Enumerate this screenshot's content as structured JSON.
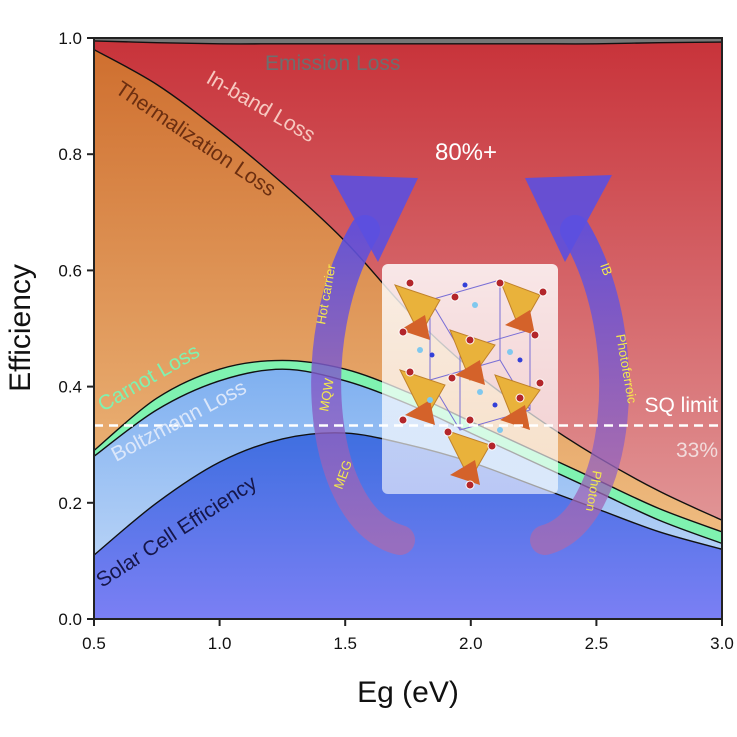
{
  "chart_data": {
    "type": "area",
    "xlabel": "Eg (eV)",
    "ylabel": "Efficiency",
    "xlim": [
      0.5,
      3.0
    ],
    "ylim": [
      0.0,
      1.0
    ],
    "xticks": [
      "0.5",
      "1.0",
      "1.5",
      "2.0",
      "2.5",
      "3.0"
    ],
    "yticks": [
      "0.0",
      "0.2",
      "0.4",
      "0.6",
      "0.8",
      "1.0"
    ],
    "x": [
      0.5,
      0.75,
      1.0,
      1.25,
      1.5,
      1.75,
      2.0,
      2.25,
      2.5,
      2.75,
      3.0
    ],
    "series": [
      {
        "name": "Solar Cell Efficiency",
        "values": [
          0.11,
          0.2,
          0.27,
          0.31,
          0.32,
          0.3,
          0.27,
          0.23,
          0.19,
          0.15,
          0.12
        ],
        "color": "#5a63d8"
      },
      {
        "name": "Boltzmann Loss",
        "values": [
          0.28,
          0.36,
          0.41,
          0.43,
          0.41,
          0.37,
          0.32,
          0.27,
          0.22,
          0.17,
          0.13
        ],
        "color": "#9fc6f4"
      },
      {
        "name": "Carnot Loss",
        "values": [
          0.29,
          0.38,
          0.43,
          0.445,
          0.43,
          0.39,
          0.34,
          0.29,
          0.24,
          0.19,
          0.15
        ],
        "color": "#7ff2b0"
      },
      {
        "name": "Thermalization Loss",
        "values": [
          0.98,
          0.92,
          0.84,
          0.75,
          0.65,
          0.53,
          0.43,
          0.35,
          0.28,
          0.22,
          0.17
        ],
        "color": "#d8883b"
      },
      {
        "name": "In-band Loss",
        "values": [
          0.995,
          0.992,
          0.99,
          0.99,
          0.99,
          0.99,
          0.99,
          0.99,
          0.99,
          0.992,
          0.993
        ],
        "color": "#c73a3a"
      },
      {
        "name": "Emission Loss",
        "values": [
          1.0,
          1.0,
          1.0,
          1.0,
          1.0,
          1.0,
          1.0,
          1.0,
          1.0,
          1.0,
          1.0
        ],
        "color": "#777777"
      }
    ],
    "sq_limit": {
      "label": "SQ limit",
      "value_label": "33%",
      "y": 0.333
    },
    "highlight_label": "80%+",
    "arrow_labels_left": [
      "Hot carrier",
      "MQW",
      "MEG"
    ],
    "arrow_labels_right": [
      "IB",
      "Photoferroic",
      "Photon"
    ],
    "legend": "none",
    "grid": false
  }
}
